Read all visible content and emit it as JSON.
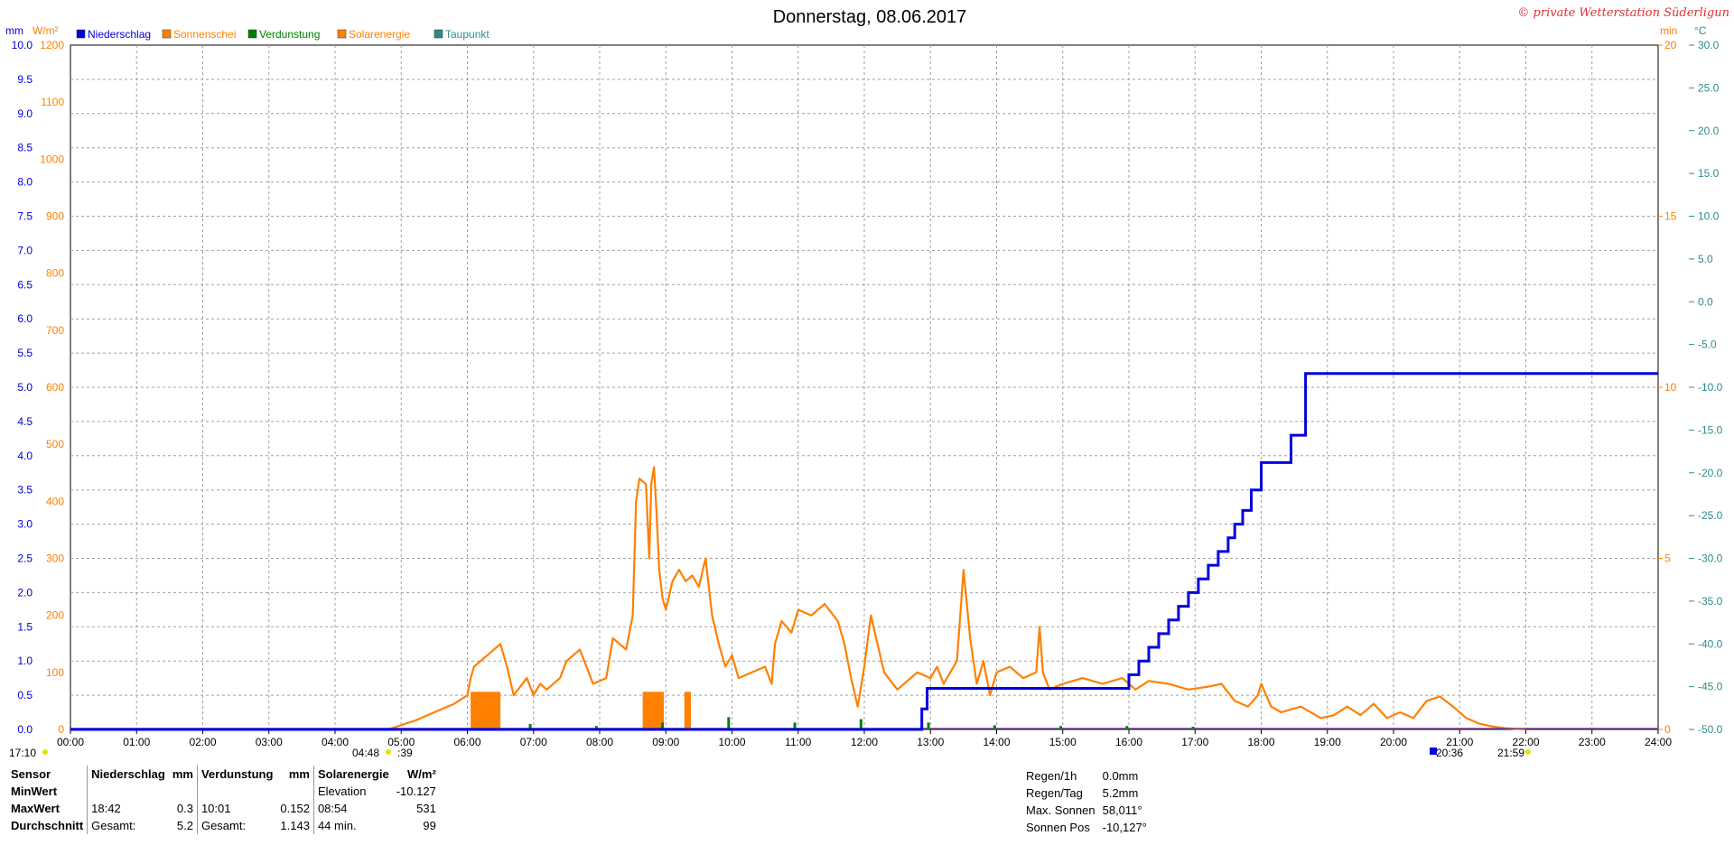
{
  "chart_data": {
    "type": "line",
    "title": "Donnerstag, 08.06.2017",
    "copyright": "© private Wetterstation Süderligun",
    "x_ticks": [
      "00:00",
      "01:00",
      "02:00",
      "03:00",
      "04:00",
      "05:00",
      "06:00",
      "07:00",
      "08:00",
      "09:00",
      "10:00",
      "11:00",
      "12:00",
      "13:00",
      "14:00",
      "15:00",
      "16:00",
      "17:00",
      "18:00",
      "19:00",
      "20:00",
      "21:00",
      "22:00",
      "23:00",
      "24:00"
    ],
    "x_range_hours": [
      0,
      24
    ],
    "axes": {
      "mm": {
        "unit": "mm",
        "range": [
          0,
          10
        ],
        "ticks": [
          "0.0",
          "0.5",
          "1.0",
          "1.5",
          "2.0",
          "2.5",
          "3.0",
          "3.5",
          "4.0",
          "4.5",
          "5.0",
          "5.5",
          "6.0",
          "6.5",
          "7.0",
          "7.5",
          "8.0",
          "8.5",
          "9.0",
          "9.5",
          "10.0"
        ],
        "color": "#0000dd"
      },
      "wm2": {
        "unit": "W/m²",
        "range": [
          0,
          1200
        ],
        "ticks": [
          "0",
          "100",
          "200",
          "300",
          "400",
          "500",
          "600",
          "700",
          "800",
          "900",
          "1000",
          "1100",
          "1200"
        ],
        "color": "#ff8000"
      },
      "min": {
        "unit": "min",
        "range": [
          0,
          20
        ],
        "ticks": [
          "0",
          "5",
          "10",
          "15",
          "20"
        ],
        "color": "#ff8000"
      },
      "degc": {
        "unit": "°C",
        "range": [
          -50,
          30
        ],
        "ticks": [
          "-50.0",
          "-45.0",
          "-40.0",
          "-35.0",
          "-30.0",
          "-25.0",
          "-20.0",
          "-15.0",
          "-10.0",
          "-5.0",
          "0.0",
          "5.0",
          "10.0",
          "15.0",
          "20.0",
          "25.0",
          "30.0"
        ],
        "color": "#2e8b8b"
      }
    },
    "grid": true,
    "legend": [
      {
        "name": "Niederschlag",
        "color": "#0000dd"
      },
      {
        "name": "Sonnenschei",
        "color": "#ff8000"
      },
      {
        "name": "Verdunstung",
        "color": "#008000"
      },
      {
        "name": "Solarenergie",
        "color": "#ff8000"
      },
      {
        "name": "Taupunkt",
        "color": "#2e8b8b"
      }
    ],
    "series": [
      {
        "name": "Niederschlag",
        "axis": "mm",
        "style": "step",
        "x": [
          0,
          12.87,
          12.95,
          16.0,
          16.15,
          16.3,
          16.45,
          16.6,
          16.75,
          16.9,
          17.05,
          17.2,
          17.35,
          17.5,
          17.6,
          17.72,
          17.85,
          18.0,
          18.45,
          18.67,
          24
        ],
        "y": [
          0,
          0.3,
          0.6,
          0.8,
          1.0,
          1.2,
          1.4,
          1.6,
          1.8,
          2.0,
          2.2,
          2.4,
          2.6,
          2.8,
          3.0,
          3.2,
          3.5,
          3.9,
          4.3,
          5.2,
          5.2
        ]
      },
      {
        "name": "Solarenergie",
        "axis": "wm2",
        "style": "line",
        "x": [
          0,
          4.8,
          5.2,
          5.5,
          5.8,
          6.0,
          6.05,
          6.1,
          6.3,
          6.5,
          6.6,
          6.7,
          6.9,
          7.0,
          7.1,
          7.2,
          7.4,
          7.5,
          7.7,
          7.8,
          7.9,
          8.1,
          8.2,
          8.3,
          8.4,
          8.5,
          8.55,
          8.6,
          8.7,
          8.75,
          8.78,
          8.82,
          8.86,
          8.9,
          8.95,
          9.0,
          9.1,
          9.2,
          9.3,
          9.4,
          9.5,
          9.6,
          9.7,
          9.8,
          9.9,
          10.0,
          10.1,
          10.3,
          10.5,
          10.6,
          10.65,
          10.75,
          10.9,
          11.0,
          11.2,
          11.4,
          11.6,
          11.7,
          11.8,
          11.9,
          12.0,
          12.1,
          12.2,
          12.3,
          12.5,
          12.6,
          12.8,
          13.0,
          13.1,
          13.2,
          13.3,
          13.4,
          13.5,
          13.6,
          13.7,
          13.8,
          13.9,
          14.0,
          14.2,
          14.4,
          14.6,
          14.65,
          14.7,
          14.8,
          15.0,
          15.3,
          15.6,
          15.9,
          16.1,
          16.3,
          16.6,
          16.9,
          17.2,
          17.4,
          17.6,
          17.8,
          17.95,
          18.0,
          18.15,
          18.3,
          18.6,
          18.9,
          19.1,
          19.3,
          19.5,
          19.7,
          19.9,
          20.1,
          20.3,
          20.5,
          20.7,
          20.9,
          21.1,
          21.3,
          21.5,
          21.7,
          22.0
        ],
        "y": [
          0,
          0,
          15,
          30,
          45,
          60,
          90,
          110,
          130,
          150,
          110,
          60,
          90,
          60,
          80,
          70,
          90,
          120,
          140,
          110,
          80,
          90,
          160,
          150,
          140,
          200,
          400,
          440,
          430,
          300,
          430,
          460,
          380,
          280,
          230,
          210,
          260,
          280,
          260,
          270,
          250,
          300,
          200,
          150,
          110,
          130,
          90,
          100,
          110,
          80,
          150,
          190,
          170,
          210,
          200,
          220,
          190,
          150,
          90,
          40,
          110,
          200,
          150,
          100,
          70,
          80,
          100,
          90,
          110,
          80,
          100,
          120,
          280,
          160,
          80,
          120,
          60,
          100,
          110,
          90,
          100,
          180,
          100,
          70,
          80,
          90,
          80,
          90,
          70,
          85,
          80,
          70,
          75,
          80,
          50,
          40,
          60,
          80,
          40,
          30,
          40,
          20,
          25,
          40,
          25,
          45,
          20,
          30,
          20,
          50,
          58,
          40,
          20,
          10,
          5,
          2,
          0
        ]
      },
      {
        "name": "Sonnenschein",
        "axis": "min",
        "style": "bar",
        "bars": [
          {
            "x0": 6.05,
            "x1": 6.5,
            "value": 1.1
          },
          {
            "x0": 8.65,
            "x1": 8.97,
            "value": 1.1
          },
          {
            "x0": 9.28,
            "x1": 9.38,
            "value": 1.1
          }
        ]
      },
      {
        "name": "Verdunstung",
        "axis": "mm",
        "style": "spikes",
        "x": [
          6.95,
          7.95,
          8.95,
          9.95,
          10.95,
          11.95,
          12.97,
          13.97,
          14.97,
          15.97,
          16.97
        ],
        "y": [
          0.08,
          0.05,
          0.1,
          0.18,
          0.1,
          0.15,
          0.1,
          0.06,
          0.05,
          0.05,
          0.04
        ]
      },
      {
        "name": "Taupunkt",
        "axis": "degc",
        "style": "line",
        "x": [
          0,
          24
        ],
        "y": [
          -50,
          -50
        ]
      }
    ],
    "time_markers": [
      "17:10",
      "04:48",
      ":39",
      "20:36",
      "21:59"
    ]
  },
  "stats_table": {
    "headers": [
      "Sensor",
      "Niederschlag",
      "mm",
      "Verdunstung",
      "mm",
      "Solarenergie",
      "W/m²"
    ],
    "rows": [
      {
        "label": "MinWert",
        "c1": "",
        "c2": "",
        "c3": "",
        "c4": "",
        "c5": "Elevation",
        "c6": "-10.127"
      },
      {
        "label": "MaxWert",
        "c1": "18:42",
        "c2": "0.3",
        "c3": "10:01",
        "c4": "0.152",
        "c5": "08:54",
        "c6": "531"
      },
      {
        "label": "Durchschnitt",
        "c1": "Gesamt:",
        "c2": "5.2",
        "c3": "Gesamt:",
        "c4": "1.143",
        "c5": "44 min.",
        "c6": "99"
      }
    ]
  },
  "info_panel": [
    {
      "label": "Regen/1h",
      "value": "0.0mm"
    },
    {
      "label": "Regen/Tag",
      "value": "5.2mm"
    },
    {
      "label": "Max. Sonnen",
      "value": "58,011°"
    },
    {
      "label": "Sonnen Pos",
      "value": "-10,127°"
    }
  ]
}
